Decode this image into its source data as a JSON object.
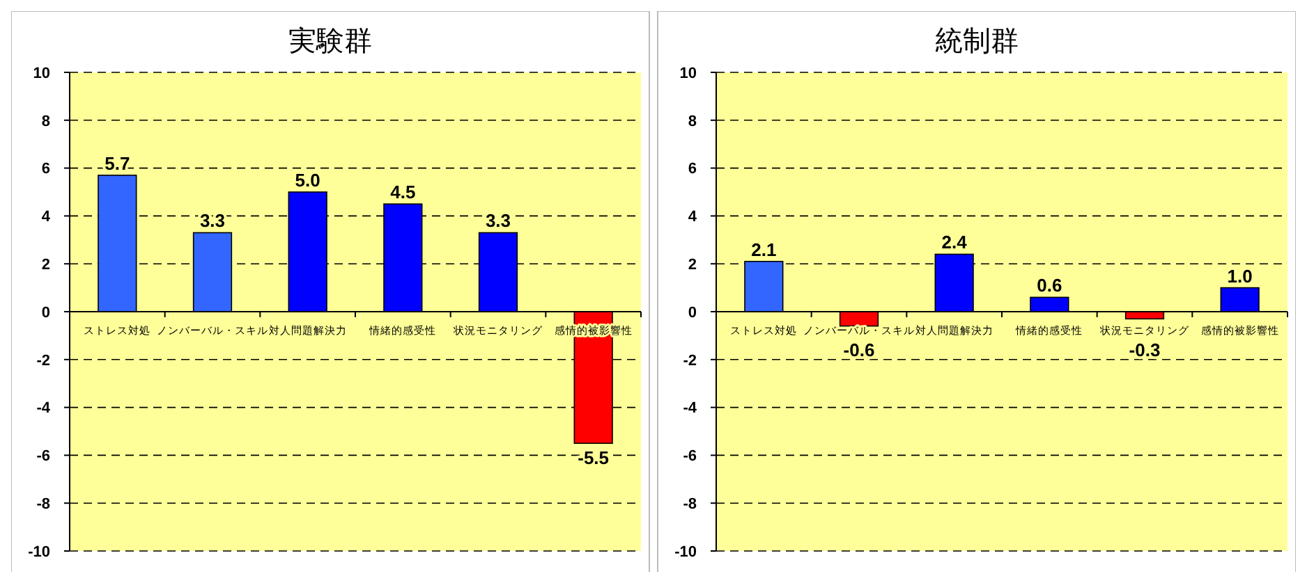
{
  "chart_data": [
    {
      "type": "bar",
      "title": "実験群",
      "categories": [
        "ストレス対処",
        "ノンバーバル・スキル",
        "対人問題解決力",
        "情緒的感受性",
        "状況モニタリング",
        "感情的被影響性"
      ],
      "values": [
        5.7,
        3.3,
        5.0,
        4.5,
        3.3,
        -5.5
      ],
      "colors": [
        "#3366ff",
        "#3366ff",
        "#0000ff",
        "#0000ff",
        "#0000ff",
        "#ff0000"
      ],
      "ylim": [
        -10,
        10
      ],
      "yticks": [
        -10,
        -8,
        -6,
        -4,
        -2,
        0,
        2,
        4,
        6,
        8,
        10
      ],
      "grid": "y",
      "data_labels": true,
      "value_labels": [
        "5.7",
        "3.3",
        "5.0",
        "4.5",
        "3.3",
        "-5.5"
      ]
    },
    {
      "type": "bar",
      "title": "統制群",
      "categories": [
        "ストレス対処",
        "ノンバーバル・スキル",
        "対人問題解決力",
        "情緒的感受性",
        "状況モニタリング",
        "感情的被影響性"
      ],
      "values": [
        2.1,
        -0.6,
        2.4,
        0.6,
        -0.3,
        1.0
      ],
      "colors": [
        "#3366ff",
        "#ff0000",
        "#0000ff",
        "#0000ff",
        "#ff0000",
        "#0000ff"
      ],
      "ylim": [
        -10,
        10
      ],
      "yticks": [
        -10,
        -8,
        -6,
        -4,
        -2,
        0,
        2,
        4,
        6,
        8,
        10
      ],
      "grid": "y",
      "data_labels": true,
      "value_labels": [
        "2.1",
        "-0.6",
        "2.4",
        "0.6",
        "-0.3",
        "1.0"
      ]
    }
  ]
}
